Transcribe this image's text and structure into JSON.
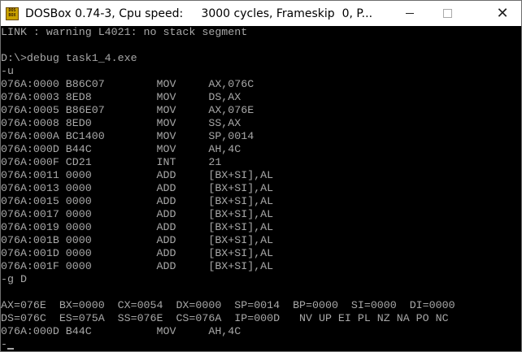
{
  "window": {
    "title": "DOSBox 0.74-3, Cpu speed:     3000 cycles, Frameskip  0, P...",
    "icon_text": "DOS BOX",
    "minimize_icon": "minimize-icon",
    "maximize_icon": "maximize-icon",
    "close_icon": "close-icon"
  },
  "terminal": {
    "text_color": "#a8a8a8",
    "background": "#000000",
    "lines": [
      "LINK : warning L4021: no stack segment",
      "",
      "D:\\>debug task1_4.exe",
      "-u",
      "076A:0000 B86C07        MOV     AX,076C",
      "076A:0003 8ED8          MOV     DS,AX",
      "076A:0005 B86E07        MOV     AX,076E",
      "076A:0008 8ED0          MOV     SS,AX",
      "076A:000A BC1400        MOV     SP,0014",
      "076A:000D B44C          MOV     AH,4C",
      "076A:000F CD21          INT     21",
      "076A:0011 0000          ADD     [BX+SI],AL",
      "076A:0013 0000          ADD     [BX+SI],AL",
      "076A:0015 0000          ADD     [BX+SI],AL",
      "076A:0017 0000          ADD     [BX+SI],AL",
      "076A:0019 0000          ADD     [BX+SI],AL",
      "076A:001B 0000          ADD     [BX+SI],AL",
      "076A:001D 0000          ADD     [BX+SI],AL",
      "076A:001F 0000          ADD     [BX+SI],AL",
      "-g D",
      "",
      "AX=076E  BX=0000  CX=0054  DX=0000  SP=0014  BP=0000  SI=0000  DI=0000",
      "DS=076C  ES=075A  SS=076E  CS=076A  IP=000D   NV UP EI PL NZ NA PO NC",
      "076A:000D B44C          MOV     AH,4C"
    ],
    "prompt": "-"
  }
}
